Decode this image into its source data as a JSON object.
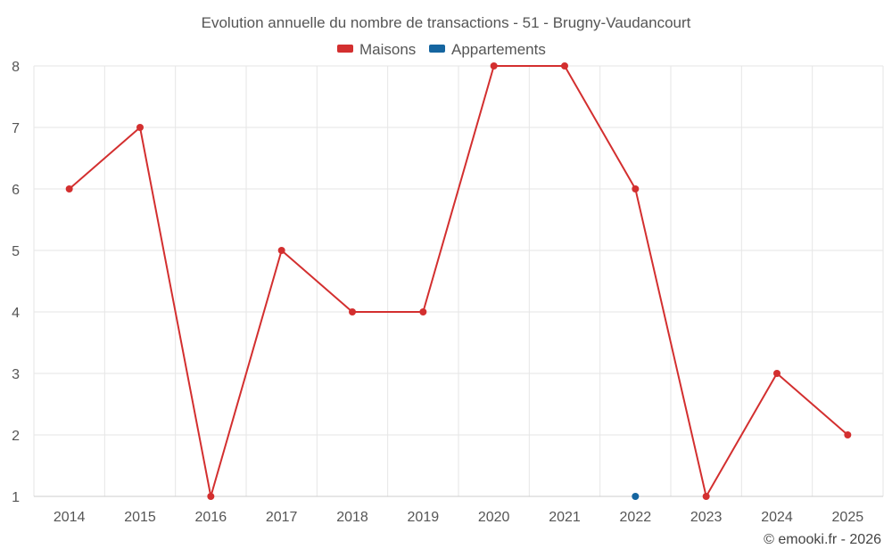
{
  "chart_data": {
    "type": "line",
    "title": "Evolution annuelle du nombre de transactions - 51 - Brugny-Vaudancourt",
    "categories": [
      "2014",
      "2015",
      "2016",
      "2017",
      "2018",
      "2019",
      "2020",
      "2021",
      "2022",
      "2023",
      "2024",
      "2025"
    ],
    "series": [
      {
        "name": "Maisons",
        "color": "#d32f2f",
        "values": [
          6,
          7,
          1,
          5,
          4,
          4,
          8,
          8,
          6,
          1,
          3,
          2
        ]
      },
      {
        "name": "Appartements",
        "color": "#1565a0",
        "values": [
          null,
          null,
          null,
          null,
          null,
          null,
          null,
          null,
          1,
          null,
          null,
          null
        ]
      }
    ],
    "ylim": [
      1,
      8
    ],
    "yticks": [
      1,
      2,
      3,
      4,
      5,
      6,
      7,
      8
    ],
    "grid": true,
    "legend": "top-center",
    "xlabel": "",
    "ylabel": ""
  },
  "credit": "© emooki.fr - 2026"
}
